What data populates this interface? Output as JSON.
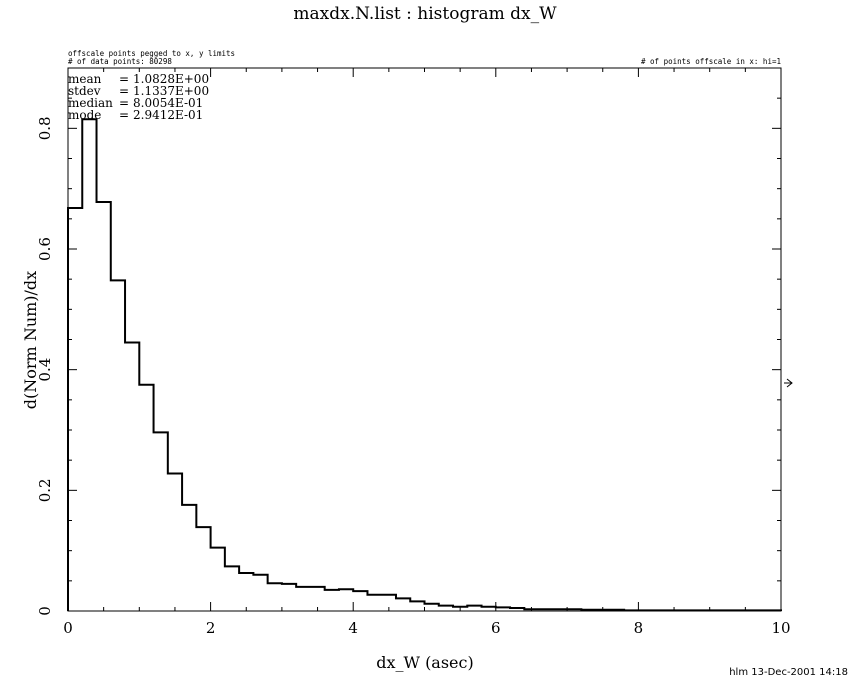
{
  "chart_data": {
    "type": "histogram",
    "title": "maxdx.N.list : histogram dx_W",
    "xlabel": "dx_W (asec)",
    "ylabel": "d(Norm Num)/dx",
    "xlim": [
      0,
      10
    ],
    "ylim": [
      0,
      0.9
    ],
    "x_ticks": [
      0,
      2,
      4,
      6,
      8,
      10
    ],
    "y_ticks": [
      0,
      0.2,
      0.4,
      0.6,
      0.8
    ],
    "bin_width": 0.2,
    "bin_start": 0,
    "values": [
      0.668,
      0.815,
      0.678,
      0.548,
      0.445,
      0.375,
      0.296,
      0.228,
      0.176,
      0.139,
      0.105,
      0.074,
      0.063,
      0.06,
      0.046,
      0.045,
      0.04,
      0.04,
      0.035,
      0.036,
      0.033,
      0.027,
      0.027,
      0.021,
      0.016,
      0.012,
      0.009,
      0.007,
      0.009,
      0.007,
      0.006,
      0.005,
      0.003,
      0.003,
      0.003,
      0.003,
      0.002,
      0.002,
      0.002,
      0.001,
      0.001,
      0.001,
      0.001,
      0.001,
      0.001,
      0.001,
      0.001,
      0.001,
      0.001,
      0.001
    ],
    "stats": [
      {
        "label": "mean",
        "value": "1.0828E+00"
      },
      {
        "label": "stdev",
        "value": "1.1337E+00"
      },
      {
        "label": "median",
        "value": "8.0054E-01"
      },
      {
        "label": "mode",
        "value": "2.9412E-01"
      }
    ],
    "notes": {
      "offscale": "offscale points pegged to x, y limits",
      "num_points": "# of data points: 80298",
      "offscale_x": "# of points offscale in x: hi=1"
    },
    "footer": "hlm 13-Dec-2001 14:18",
    "grid": false,
    "line_color": "#000000"
  }
}
